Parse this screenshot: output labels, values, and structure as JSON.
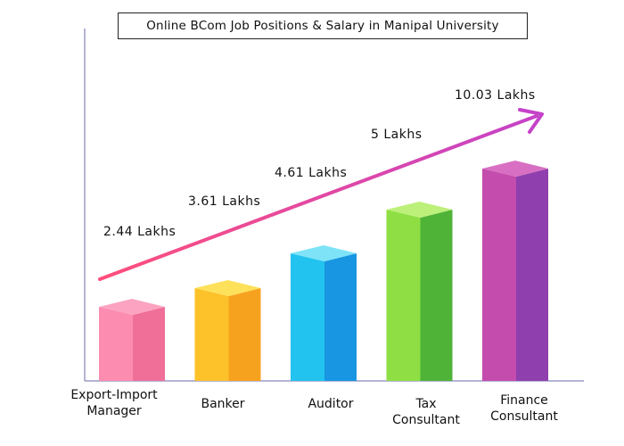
{
  "chart_data": {
    "type": "bar",
    "title": "Online BCom Job Positions & Salary in Manipal University",
    "categories": [
      "Export-Import Manager",
      "Banker",
      "Auditor",
      "Tax Consultant",
      "Finance Consultant"
    ],
    "category_lines": [
      [
        "Export-Import",
        "Manager"
      ],
      [
        "Banker"
      ],
      [
        "Auditor"
      ],
      [
        "Tax",
        "Consultant"
      ],
      [
        "Finance",
        "Consultant"
      ]
    ],
    "values": [
      2.44,
      3.61,
      4.61,
      5,
      10.03
    ],
    "value_labels": [
      "2.44 Lakhs",
      "3.61 Lakhs",
      "4.61 Lakhs",
      "5 Lakhs",
      "10.03 Lakhs"
    ],
    "unit": "Lakhs",
    "xlabel": "",
    "ylabel": "",
    "grid": false,
    "legend": "none",
    "trend_arrow": true,
    "colors": [
      {
        "top": "#fba3c0",
        "front": "#fd8cb1",
        "side": "#ef6f98"
      },
      {
        "top": "#fde15a",
        "front": "#fdc12a",
        "side": "#f7a21e"
      },
      {
        "top": "#7ee3f7",
        "front": "#22c3ef",
        "side": "#1896e2"
      },
      {
        "top": "#bdf07a",
        "front": "#8fdf44",
        "side": "#4fb338"
      },
      {
        "top": "#d86fc2",
        "front": "#c44cad",
        "side": "#8f3fae"
      }
    ],
    "arrow_colors": [
      "#ff4f7b",
      "#c542c8"
    ]
  }
}
